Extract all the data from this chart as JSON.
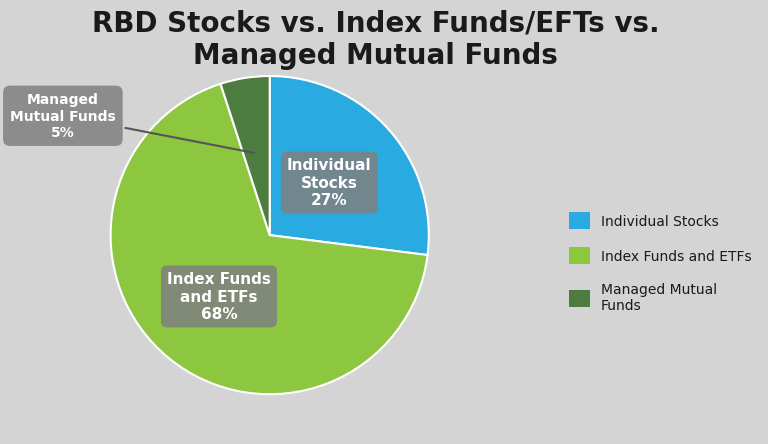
{
  "title": "RBD Stocks vs. Index Funds/EFTs vs.\nManaged Mutual Funds",
  "slices": [
    27,
    68,
    5
  ],
  "colors": [
    "#29ABE2",
    "#8DC63F",
    "#4C7C3F"
  ],
  "startangle": 90,
  "background_color": "#d4d4d4",
  "label_box_color": "#808080",
  "label_text_color": "#ffffff",
  "title_color": "#1a1a1a",
  "title_fontsize": 20,
  "label_fontsize": 11,
  "annot_fontsize": 10,
  "legend_color_mmf": "#4C7C3F",
  "legend_color_index": "#8DC63F",
  "legend_color_stocks": "#29ABE2",
  "label1": "Individual\nStocks\n27%",
  "label2": "Index Funds\nand ETFs\n68%",
  "label3": "Managed\nMutual Funds\n5%",
  "legend1": "Individual Stocks",
  "legend2": "Index Funds and ETFs",
  "legend3": "Managed Mutual\nFunds"
}
